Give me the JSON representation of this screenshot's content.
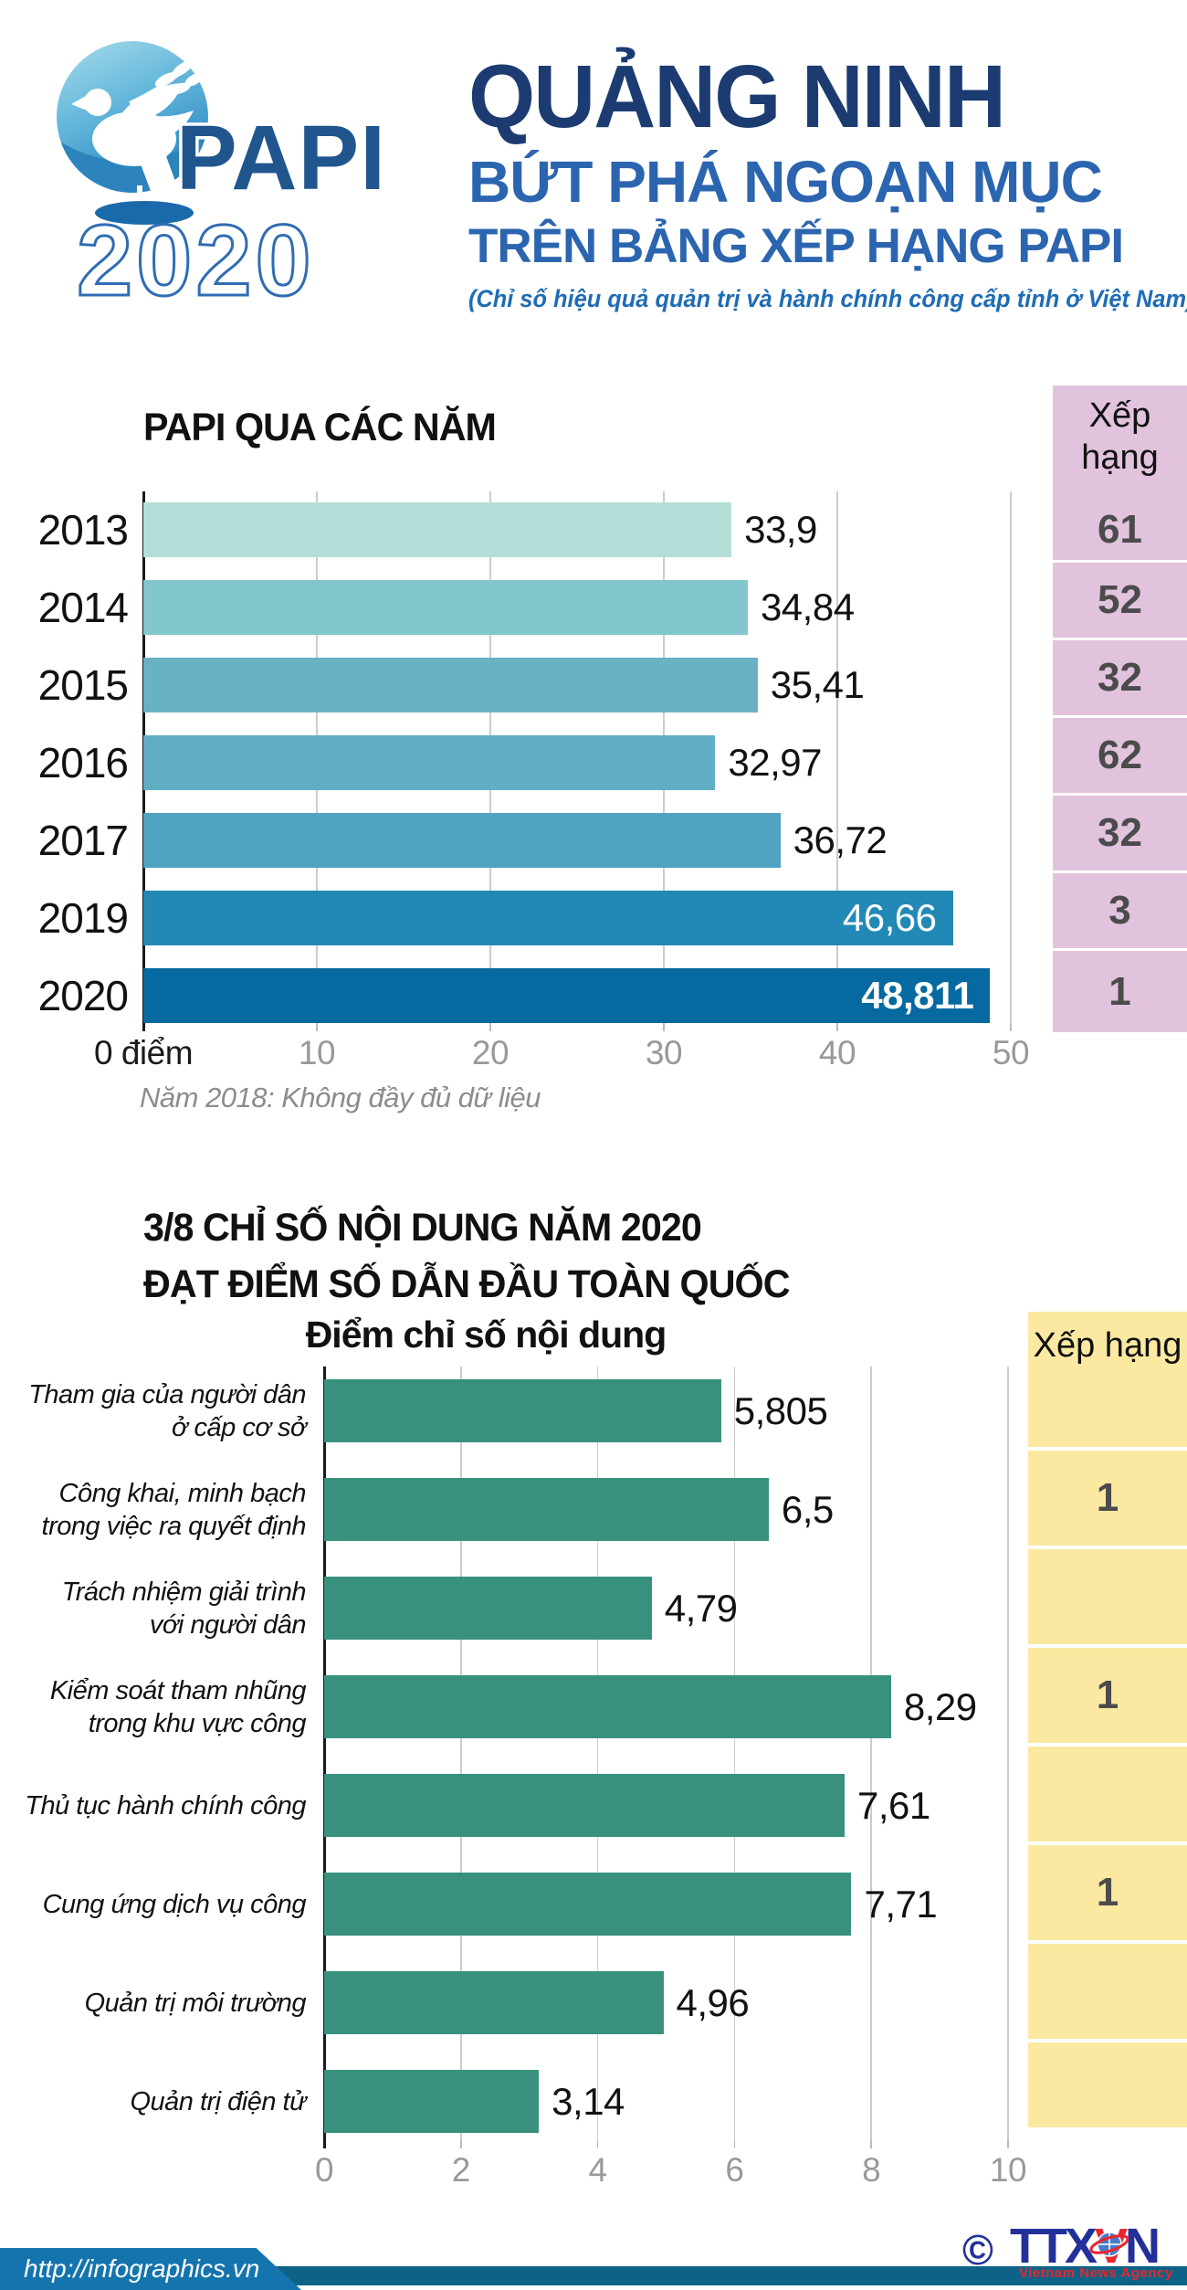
{
  "header": {
    "logo_papi": "PAPI",
    "logo_year": "2020",
    "title": "QUẢNG NINH",
    "subtitle_line1": "BỨT PHÁ NGOẠN MỤC",
    "subtitle_line2": "TRÊN BẢNG XẾP HẠNG PAPI",
    "tagline": "(Chỉ số hiệu quả quản trị và hành chính công cấp tỉnh ở Việt Nam)"
  },
  "section2": {
    "title_line1": "3/8 CHỈ SỐ NỘI DUNG NĂM 2020",
    "title_line2": "ĐẠT ĐIỂM SỐ DẪN ĐẦU TOÀN QUỐC"
  },
  "footer": {
    "url": "http://infographics.vn",
    "copyright": "©",
    "agency_ttx": "TTX",
    "agency_v": "V",
    "agency_n": "N",
    "agency_sub": "Vietnam News Agency"
  },
  "colors": {
    "rank1_bg": "#e2c3dd",
    "rank2_bg": "#fbe9a2",
    "rank_text": "#4b4b4b",
    "grid": "#cccccc",
    "axis": "#1a1a1a",
    "tick_label": "#999999",
    "chart2_bar": "#39917d"
  },
  "chart_data": [
    {
      "type": "bar",
      "orientation": "horizontal",
      "title": "PAPI QUA CÁC NĂM",
      "categories": [
        "2013",
        "2014",
        "2015",
        "2016",
        "2017",
        "2019",
        "2020"
      ],
      "values": [
        33.9,
        34.84,
        35.41,
        32.97,
        36.72,
        46.66,
        48.811
      ],
      "value_labels": [
        "33,9",
        "34,84",
        "35,41",
        "32,97",
        "36,72",
        "46,66",
        "48,811"
      ],
      "label_inside": [
        false,
        false,
        false,
        false,
        false,
        true,
        true
      ],
      "label_bold": [
        false,
        false,
        false,
        false,
        false,
        false,
        true
      ],
      "bar_colors": [
        "#b4dfd9",
        "#82c6cd",
        "#68b2c3",
        "#61aec4",
        "#4fa3c0",
        "#2289b6",
        "#06699f"
      ],
      "rank_header": "Xếp hạng",
      "ranks": [
        "61",
        "52",
        "32",
        "62",
        "32",
        "3",
        "1"
      ],
      "xlim": [
        0,
        50
      ],
      "x_tick_values": [
        0,
        10,
        20,
        30,
        40,
        50
      ],
      "x_ticks": [
        "0 điểm",
        "10",
        "20",
        "30",
        "40",
        "50"
      ],
      "footnote": "Năm 2018: Không đầy đủ dữ liệu",
      "grid": true,
      "legend": false
    },
    {
      "type": "bar",
      "orientation": "horizontal",
      "title": "3/8 CHỈ SỐ NỘI DUNG NĂM 2020 ĐẠT ĐIỂM SỐ DẪN ĐẦU TOÀN QUỐC",
      "axis_title": "Điểm chỉ số nội dung",
      "categories": [
        [
          "Tham gia của người dân",
          "ở cấp cơ sở"
        ],
        [
          "Công khai, minh bạch",
          "trong việc ra quyết định"
        ],
        [
          "Trách nhiệm giải trình",
          "với người dân"
        ],
        [
          "Kiểm soát tham nhũng",
          "trong khu vực công"
        ],
        [
          "Thủ tục hành chính công"
        ],
        [
          "Cung ứng dịch vụ công"
        ],
        [
          "Quản trị môi trường"
        ],
        [
          "Quản trị điện tử"
        ]
      ],
      "values": [
        5.805,
        6.5,
        4.79,
        8.29,
        7.61,
        7.71,
        4.96,
        3.14
      ],
      "value_labels": [
        "5,805",
        "6,5",
        "4,79",
        "8,29",
        "7,61",
        "7,71",
        "4,96",
        "3,14"
      ],
      "rank_header": "Xếp hạng",
      "ranks": [
        "",
        "1",
        "",
        "1",
        "",
        "1",
        "",
        ""
      ],
      "xlim": [
        0,
        10
      ],
      "x_tick_values": [
        0,
        2,
        4,
        6,
        8,
        10
      ],
      "x_ticks": [
        "0",
        "2",
        "4",
        "6",
        "8",
        "10"
      ],
      "grid": true,
      "legend": false
    }
  ]
}
